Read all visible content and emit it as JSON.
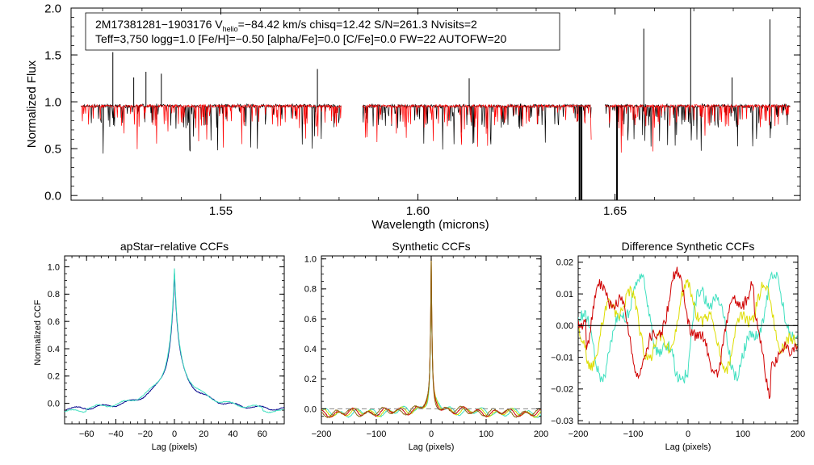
{
  "top_panel": {
    "info_line1_prefix": "2M17381281−1903176  V",
    "info_line1_sub": "helio",
    "info_line1_suffix": "=−84.42 km/s  chisq=12.42  S/N=261.3  Nvisits=2",
    "info_line2": "Teff=3,750 logg=1.0 [Fe/H]=−0.50 [alpha/Fe]=0.0 [C/Fe]=0.0 FW=22 AUTOFW=20"
  },
  "chart_data": [
    {
      "type": "line",
      "name": "spectrum",
      "xlabel": "Wavelength (microns)",
      "ylabel": "Normalized Flux",
      "xlim": [
        1.512,
        1.697
      ],
      "ylim": [
        -0.05,
        2.0
      ],
      "xticks": [
        1.55,
        1.6,
        1.65
      ],
      "xtick_labels": [
        "1.55",
        "1.60",
        "1.65"
      ],
      "yticks": [
        0.0,
        0.5,
        1.0,
        1.5,
        2.0
      ],
      "ytick_labels": [
        "0.0",
        "0.5",
        "1.0",
        "1.5",
        "2.0"
      ],
      "chips": [
        [
          1.5145,
          1.5805
        ],
        [
          1.586,
          1.644
        ],
        [
          1.6475,
          1.6945
        ]
      ],
      "emission_spikes": [
        {
          "x": 1.5226,
          "y": 1.53
        },
        {
          "x": 1.5279,
          "y": 1.26
        },
        {
          "x": 1.531,
          "y": 1.32
        },
        {
          "x": 1.5349,
          "y": 1.3
        },
        {
          "x": 1.5745,
          "y": 1.35
        },
        {
          "x": 1.613,
          "y": 1.25
        },
        {
          "x": 1.6573,
          "y": 1.78
        },
        {
          "x": 1.6692,
          "y": 2.0
        },
        {
          "x": 1.6797,
          "y": 1.26
        },
        {
          "x": 1.6893,
          "y": 1.88
        }
      ],
      "absorption_drops": [
        {
          "x": 1.641,
          "y": -0.05
        },
        {
          "x": 1.6415,
          "y": -0.05
        },
        {
          "x": 1.6505,
          "y": -0.05
        }
      ],
      "series": [
        {
          "name": "observed",
          "color": "#000000"
        },
        {
          "name": "model",
          "color": "#ff0000"
        }
      ]
    },
    {
      "type": "line",
      "name": "apstar_ccf",
      "title": "apStar−relative CCFs",
      "xlabel": "Lag (pixels)",
      "ylabel": "Normalized CCF",
      "xlim": [
        -75,
        75
      ],
      "ylim": [
        -0.15,
        1.08
      ],
      "xticks": [
        -60,
        -40,
        -20,
        0,
        20,
        40,
        60
      ],
      "xtick_labels": [
        "−60",
        "−40",
        "−20",
        "0",
        "20",
        "40",
        "60"
      ],
      "yticks": [
        0.0,
        0.2,
        0.4,
        0.6,
        0.8,
        1.0
      ],
      "ytick_labels": [
        "0.0",
        "0.2",
        "0.4",
        "0.6",
        "0.8",
        "1.0"
      ],
      "series": [
        {
          "name": "visit 1",
          "color": "#00008b"
        },
        {
          "name": "visit 2",
          "color": "#40e0c0"
        }
      ]
    },
    {
      "type": "line",
      "name": "synthetic_ccf",
      "title": "Synthetic CCFs",
      "xlabel": "Lag (pixels)",
      "xlim": [
        -200,
        200
      ],
      "ylim": [
        -0.1,
        1.02
      ],
      "xticks": [
        -200,
        -100,
        0,
        100,
        200
      ],
      "xtick_labels": [
        "−200",
        "−100",
        "0",
        "100",
        "200"
      ],
      "yticks": [
        0.0,
        0.2,
        0.4,
        0.6,
        0.8,
        1.0
      ],
      "ytick_labels": [
        "0.0",
        "0.2",
        "0.4",
        "0.6",
        "0.8",
        "1.0"
      ],
      "series": [
        {
          "name": "visit 1",
          "color": "#40e0c0"
        },
        {
          "name": "visit 2",
          "color": "#c8d800"
        },
        {
          "name": "visit 3",
          "color": "#d00000"
        },
        {
          "name": "sum",
          "color": "#8b6914"
        }
      ]
    },
    {
      "type": "line",
      "name": "diff_ccf",
      "title": "Difference Synthetic CCFs",
      "xlabel": "Lag (pixels)",
      "xlim": [
        -200,
        200
      ],
      "ylim": [
        -0.031,
        0.022
      ],
      "xticks": [
        -200,
        -100,
        0,
        100,
        200
      ],
      "xtick_labels": [
        "−200",
        "−100",
        "0",
        "100",
        "200"
      ],
      "yticks": [
        -0.03,
        -0.02,
        -0.01,
        0.0,
        0.01,
        0.02
      ],
      "ytick_labels": [
        "−0.03",
        "−0.02",
        "−0.01",
        "0.00",
        "0.01",
        "0.02"
      ],
      "series": [
        {
          "name": "visit 1",
          "color": "#40e0c0"
        },
        {
          "name": "visit 2",
          "color": "#dddd00"
        },
        {
          "name": "visit 3",
          "color": "#d00000"
        },
        {
          "name": "zero",
          "color": "#000000"
        }
      ]
    }
  ]
}
